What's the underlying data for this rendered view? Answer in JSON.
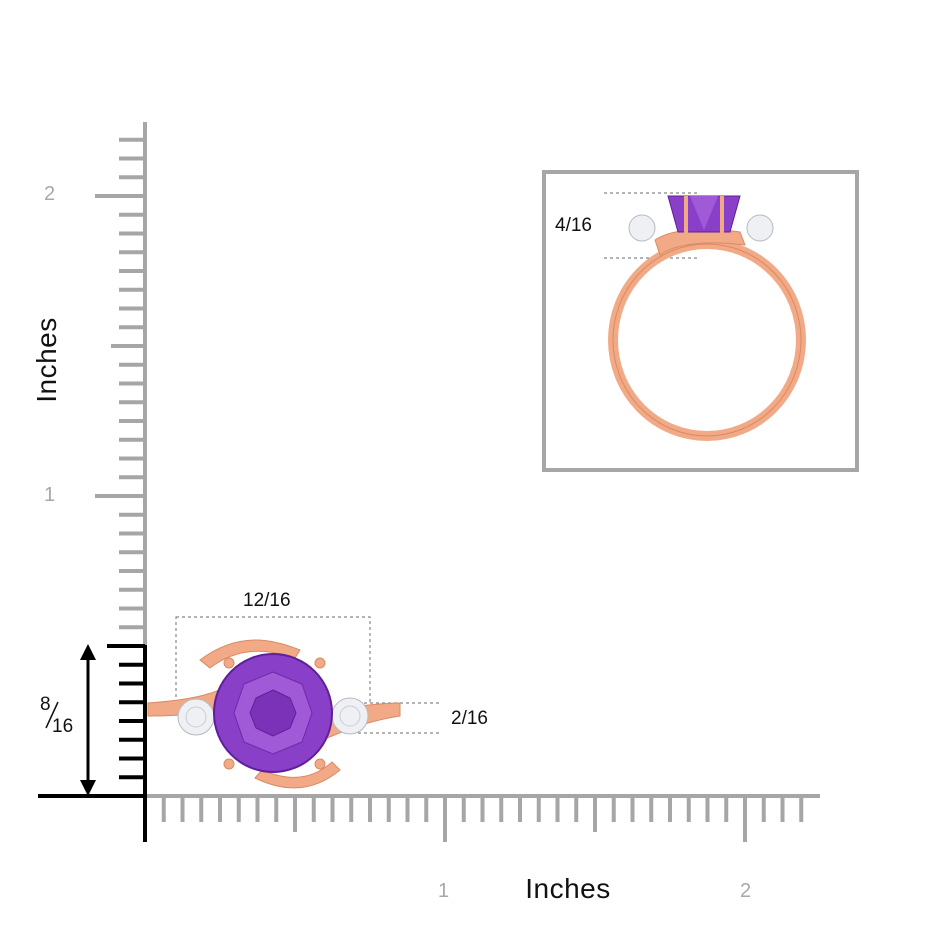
{
  "axes": {
    "y_title": "Inches",
    "x_title": "Inches",
    "y_tick_labels": [
      "1",
      "2"
    ],
    "x_tick_labels": [
      "1",
      "2"
    ]
  },
  "dimensions": {
    "width": "12/16",
    "height_num": "8",
    "height_den": "16",
    "prong_gap": "2/16",
    "side_height": "4/16"
  },
  "colors": {
    "ruler": "#a6a6a6",
    "axis": "#000000",
    "metal": "#f2a985",
    "metal_dark": "#d98a66",
    "amethyst": "#8a3fc8",
    "amethyst_dark": "#5f1f99",
    "diamond": "#eef0f3"
  }
}
